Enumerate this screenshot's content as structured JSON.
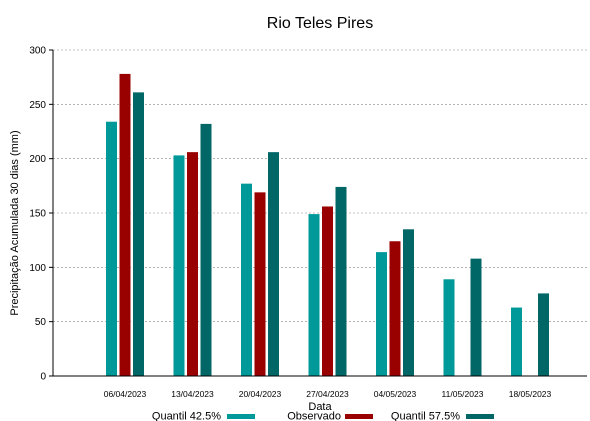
{
  "chart_data": {
    "type": "bar",
    "title": "Rio Teles Pires",
    "xlabel": "Data",
    "ylabel": "Precipitação Acumulada 30 dias (mm)",
    "ylim": [
      0,
      300
    ],
    "yticks": [
      0,
      50,
      100,
      150,
      200,
      250,
      300
    ],
    "grid": true,
    "legend_position": "bottom",
    "categories": [
      "06/04/2023",
      "13/04/2023",
      "20/04/2023",
      "27/04/2023",
      "04/05/2023",
      "11/05/2023",
      "18/05/2023"
    ],
    "series": [
      {
        "name": "Quantil 42.5%",
        "color": "#009999",
        "values": [
          234,
          203,
          177,
          149,
          114,
          89,
          63
        ]
      },
      {
        "name": "Observado",
        "color": "#990000",
        "values": [
          278,
          206,
          169,
          156,
          124,
          null,
          null
        ]
      },
      {
        "name": "Quantil 57.5%",
        "color": "#006666",
        "values": [
          261,
          232,
          206,
          174,
          135,
          108,
          76
        ]
      }
    ]
  }
}
